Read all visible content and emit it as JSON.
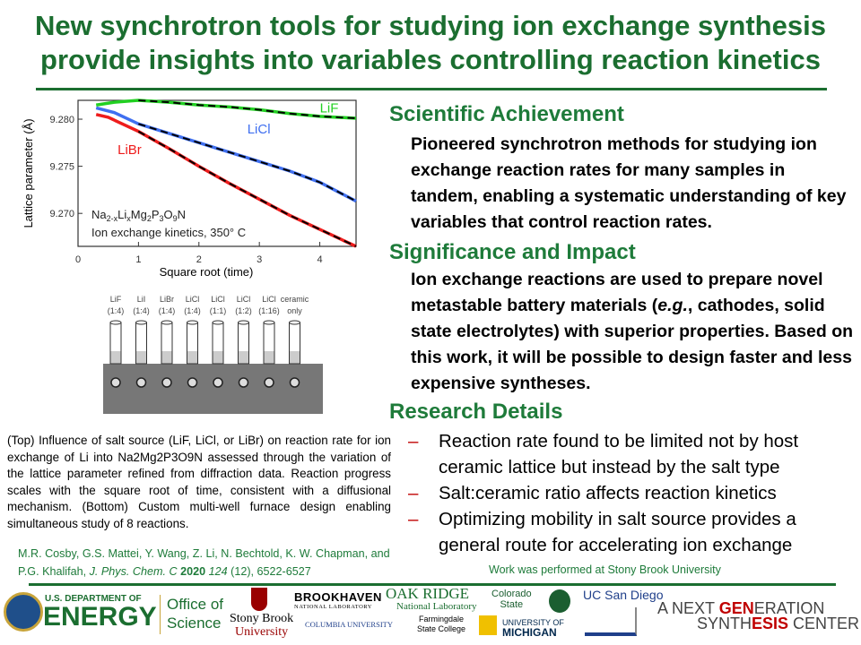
{
  "title": [
    "New synchrotron tools for studying ion exchange synthesis",
    "provide insights into variables controlling reaction kinetics"
  ],
  "sections": {
    "achievement": {
      "heading": "Scientific Achievement",
      "text": "Pioneered synchrotron methods for studying ion exchange reaction rates for many samples in tandem, enabling a systematic understanding of key variables that control reaction rates."
    },
    "impact": {
      "heading": "Significance and Impact",
      "text_before": "Ion exchange reactions are used to prepare novel metastable battery materials (",
      "text_em": "e.g.",
      "text_after": ", cathodes, solid state electrolytes) with superior properties. Based on this work, it will be possible to design faster and less expensive syntheses."
    },
    "details": {
      "heading": "Research Details",
      "bullets": [
        "Reaction rate found to be limited not by host ceramic lattice but instead by the salt type",
        "Salt:ceramic ratio affects reaction kinetics",
        "Optimizing mobility in salt source provides a general route for accelerating ion exchange"
      ]
    }
  },
  "caption": "(Top) Influence of salt source (LiF, LiCl, or LiBr) on reaction rate for ion exchange of Li into Na2Mg2P3O9N assessed through the variation of the lattice parameter refined from diffraction data. Reaction progress scales with the square root of time, consistent with a diffusional mechanism. (Bottom) Custom multi-well furnace design enabling simultaneous study of 8 reactions.",
  "citation": {
    "authors": "M.R. Cosby, G.S. Mattei, Y. Wang, Z. Li, N. Bechtold, K. W. Chapman, and P.G. Khalifah,",
    "journal": "J. Phys. Chem. C",
    "year": "2020",
    "volume": "124",
    "rest": "(12), 6522-6527"
  },
  "work_note": "Work was performed at Stony Brook University",
  "chart_data": {
    "type": "line",
    "xlabel": "Square root (time)",
    "ylabel": "Lattice parameter (Å)",
    "xlim": [
      0,
      4.6
    ],
    "ylim": [
      9.2665,
      9.282
    ],
    "xticks": [
      "0",
      "1",
      "2",
      "3",
      "4"
    ],
    "yticks": [
      "9.270",
      "9.275",
      "9.280"
    ],
    "annotation_line1": "Na2-xLixMg2P3O9N",
    "annotation_line2": "Ion exchange kinetics, 350° C",
    "series": [
      {
        "name": "LiF",
        "color": "#22d022",
        "x": [
          0.3,
          0.6,
          1,
          1.5,
          2,
          2.5,
          3,
          3.5,
          4,
          4.6
        ],
        "y": [
          9.2815,
          9.2818,
          9.282,
          9.2818,
          9.2815,
          9.2813,
          9.281,
          9.2806,
          9.2803,
          9.2801
        ]
      },
      {
        "name": "LiCl",
        "color": "#3f6ff0",
        "x": [
          0.3,
          0.6,
          1,
          1.5,
          2,
          2.5,
          3,
          3.5,
          4,
          4.6
        ],
        "y": [
          9.2812,
          9.2807,
          9.2795,
          9.2785,
          9.2775,
          9.2765,
          9.2755,
          9.2745,
          9.2733,
          9.2713
        ]
      },
      {
        "name": "LiBr",
        "color": "#ee1c1c",
        "x": [
          0.3,
          0.5,
          1,
          1.5,
          2,
          2.5,
          3,
          3.5,
          4,
          4.6
        ],
        "y": [
          9.2805,
          9.2802,
          9.2787,
          9.2769,
          9.275,
          9.2732,
          9.2715,
          9.2698,
          9.2683,
          9.2665
        ]
      }
    ]
  },
  "furnace": {
    "wells": [
      [
        "LiF",
        "(1:4)"
      ],
      [
        "LiI",
        "(1:4)"
      ],
      [
        "LiBr",
        "(1:4)"
      ],
      [
        "LiCl",
        "(1:4)"
      ],
      [
        "LiCl",
        "(1:1)"
      ],
      [
        "LiCl",
        "(1:2)"
      ],
      [
        "LiCl",
        "(1:16)"
      ],
      [
        "ceramic",
        "only"
      ]
    ]
  },
  "logos": {
    "doe1": "U.S. DEPARTMENT OF",
    "doe2": "ENERGY",
    "os1": "Office of",
    "os2": "Science",
    "sb1": "Stony Brook",
    "sb2": "University",
    "bnl1": "BROOKHAVEN",
    "bnl2": "NATIONAL LABORATORY",
    "cu": "COLUMBIA UNIVERSITY",
    "ornl1": "OAK RIDGE",
    "ornl2": "National Laboratory",
    "fsc1": "Farmingdale",
    "fsc2": "State College",
    "csu1": "Colorado",
    "csu2": "State",
    "um1": "UNIVERSITY OF",
    "um2": "MICHIGAN",
    "ucsd": "UC San Diego",
    "ngsc": {
      "a": "A NEXT ",
      "b": "GEN",
      "c": "ERATION",
      "d": "SYNTH",
      "e": "ESIS",
      "f": " CENTER"
    }
  },
  "colors": {
    "title_green": "#1b6e30",
    "heading_green": "#1e7b3a",
    "bullet_red": "#c00000"
  }
}
